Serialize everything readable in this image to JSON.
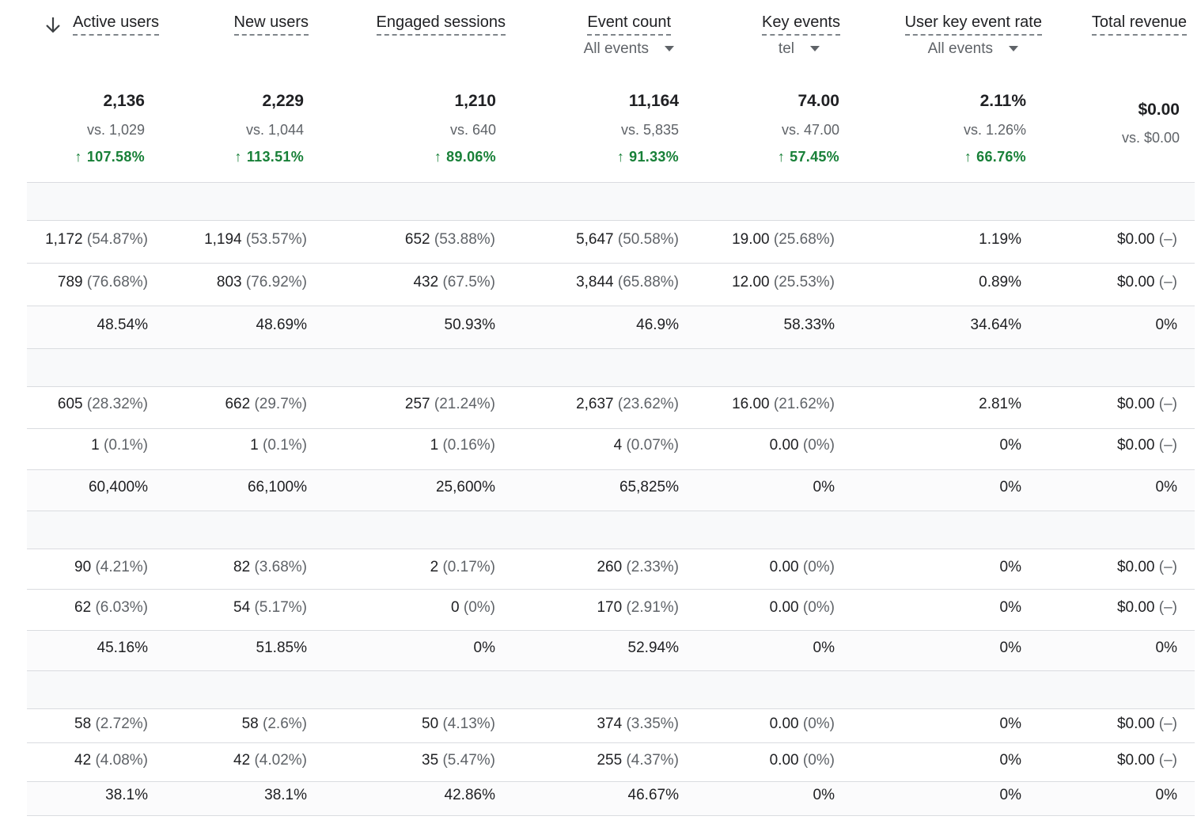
{
  "columns": [
    {
      "label": "Active users",
      "dropdown": null,
      "total": "2,136",
      "vs": "vs. 1,029",
      "change": "107.58%"
    },
    {
      "label": "New users",
      "dropdown": null,
      "total": "2,229",
      "vs": "vs. 1,044",
      "change": "113.51%"
    },
    {
      "label": "Engaged sessions",
      "dropdown": null,
      "total": "1,210",
      "vs": "vs. 640",
      "change": "89.06%"
    },
    {
      "label": "Event count",
      "dropdown": "All events",
      "total": "11,164",
      "vs": "vs. 5,835",
      "change": "91.33%"
    },
    {
      "label": "Key events",
      "dropdown": "tel",
      "total": "74.00",
      "vs": "vs. 47.00",
      "change": "57.45%"
    },
    {
      "label": "User key event rate",
      "dropdown": "All events",
      "total": "2.11%",
      "vs": "vs. 1.26%",
      "change": "66.76%"
    },
    {
      "label": "Total revenue",
      "dropdown": null,
      "total": "$0.00",
      "vs": "vs. $0.00",
      "change": null
    }
  ],
  "groups": [
    {
      "rows": [
        [
          [
            "1,172",
            "(54.87%)"
          ],
          [
            "1,194",
            "(53.57%)"
          ],
          [
            "652",
            "(53.88%)"
          ],
          [
            "5,647",
            "(50.58%)"
          ],
          [
            "19.00",
            "(25.68%)"
          ],
          [
            "1.19%",
            ""
          ],
          [
            "$0.00",
            "(–)"
          ]
        ],
        [
          [
            "789",
            "(76.68%)"
          ],
          [
            "803",
            "(76.92%)"
          ],
          [
            "432",
            "(67.5%)"
          ],
          [
            "3,844",
            "(65.88%)"
          ],
          [
            "12.00",
            "(25.53%)"
          ],
          [
            "0.89%",
            ""
          ],
          [
            "$0.00",
            "(–)"
          ]
        ],
        [
          [
            "48.54%",
            ""
          ],
          [
            "48.69%",
            ""
          ],
          [
            "50.93%",
            ""
          ],
          [
            "46.9%",
            ""
          ],
          [
            "58.33%",
            ""
          ],
          [
            "34.64%",
            ""
          ],
          [
            "0%",
            ""
          ]
        ]
      ]
    },
    {
      "rows": [
        [
          [
            "605",
            "(28.32%)"
          ],
          [
            "662",
            "(29.7%)"
          ],
          [
            "257",
            "(21.24%)"
          ],
          [
            "2,637",
            "(23.62%)"
          ],
          [
            "16.00",
            "(21.62%)"
          ],
          [
            "2.81%",
            ""
          ],
          [
            "$0.00",
            "(–)"
          ]
        ],
        [
          [
            "1",
            "(0.1%)"
          ],
          [
            "1",
            "(0.1%)"
          ],
          [
            "1",
            "(0.16%)"
          ],
          [
            "4",
            "(0.07%)"
          ],
          [
            "0.00",
            "(0%)"
          ],
          [
            "0%",
            ""
          ],
          [
            "$0.00",
            "(–)"
          ]
        ],
        [
          [
            "60,400%",
            ""
          ],
          [
            "66,100%",
            ""
          ],
          [
            "25,600%",
            ""
          ],
          [
            "65,825%",
            ""
          ],
          [
            "0%",
            ""
          ],
          [
            "0%",
            ""
          ],
          [
            "0%",
            ""
          ]
        ]
      ]
    },
    {
      "rows": [
        [
          [
            "90",
            "(4.21%)"
          ],
          [
            "82",
            "(3.68%)"
          ],
          [
            "2",
            "(0.17%)"
          ],
          [
            "260",
            "(2.33%)"
          ],
          [
            "0.00",
            "(0%)"
          ],
          [
            "0%",
            ""
          ],
          [
            "$0.00",
            "(–)"
          ]
        ],
        [
          [
            "62",
            "(6.03%)"
          ],
          [
            "54",
            "(5.17%)"
          ],
          [
            "0",
            "(0%)"
          ],
          [
            "170",
            "(2.91%)"
          ],
          [
            "0.00",
            "(0%)"
          ],
          [
            "0%",
            ""
          ],
          [
            "$0.00",
            "(–)"
          ]
        ],
        [
          [
            "45.16%",
            ""
          ],
          [
            "51.85%",
            ""
          ],
          [
            "0%",
            ""
          ],
          [
            "52.94%",
            ""
          ],
          [
            "0%",
            ""
          ],
          [
            "0%",
            ""
          ],
          [
            "0%",
            ""
          ]
        ]
      ]
    },
    {
      "rows": [
        [
          [
            "58",
            "(2.72%)"
          ],
          [
            "58",
            "(2.6%)"
          ],
          [
            "50",
            "(4.13%)"
          ],
          [
            "374",
            "(3.35%)"
          ],
          [
            "0.00",
            "(0%)"
          ],
          [
            "0%",
            ""
          ],
          [
            "$0.00",
            "(–)"
          ]
        ],
        [
          [
            "42",
            "(4.08%)"
          ],
          [
            "42",
            "(4.02%)"
          ],
          [
            "35",
            "(5.47%)"
          ],
          [
            "255",
            "(4.37%)"
          ],
          [
            "0.00",
            "(0%)"
          ],
          [
            "0%",
            ""
          ],
          [
            "$0.00",
            "(–)"
          ]
        ],
        [
          [
            "38.1%",
            ""
          ],
          [
            "38.1%",
            ""
          ],
          [
            "42.86%",
            ""
          ],
          [
            "46.67%",
            ""
          ],
          [
            "0%",
            ""
          ],
          [
            "0%",
            ""
          ],
          [
            "0%",
            ""
          ]
        ]
      ]
    }
  ],
  "colors": {
    "positive": "#188038",
    "muted": "#5f6368",
    "band": "#f8f9fa",
    "divider": "#dadce0"
  },
  "icons": {
    "sort": "arrow-down-icon",
    "dropdown": "caret-down-icon",
    "trend": "arrow-up-icon"
  }
}
